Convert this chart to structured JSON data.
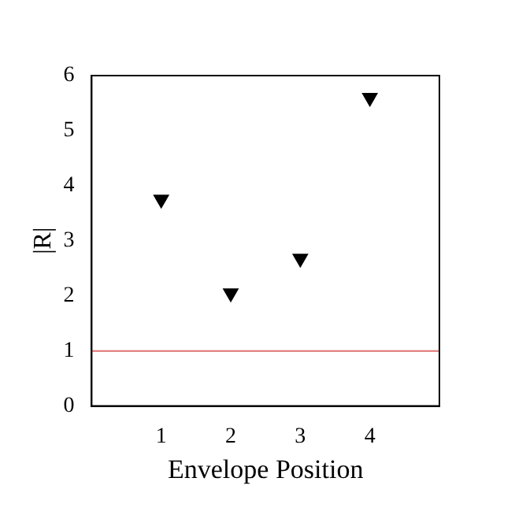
{
  "chart_data": {
    "type": "scatter",
    "xlabel": "Envelope Position",
    "ylabel": "|R|",
    "x": [
      1,
      2,
      3,
      4
    ],
    "series": [
      {
        "color": "#000000",
        "values": [
          3.75,
          2.05,
          2.68,
          5.6
        ]
      }
    ],
    "xlim": [
      0,
      5
    ],
    "xticks": [
      1,
      2,
      3,
      4
    ],
    "ylim": [
      0,
      6
    ],
    "yticks": [
      0,
      1,
      2,
      3,
      4,
      5,
      6
    ],
    "ref_lines": [
      {
        "axis": "y",
        "value": 1,
        "color": "#e07070"
      }
    ],
    "marker": "triangle",
    "grid": false,
    "legend": false
  }
}
